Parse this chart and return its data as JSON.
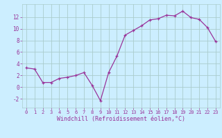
{
  "x": [
    0,
    1,
    2,
    3,
    4,
    5,
    6,
    7,
    8,
    9,
    10,
    11,
    12,
    13,
    14,
    15,
    16,
    17,
    18,
    19,
    20,
    21,
    22,
    23
  ],
  "y": [
    3.3,
    3.1,
    0.8,
    0.8,
    1.5,
    1.7,
    2.0,
    2.5,
    0.3,
    -2.3,
    2.5,
    5.3,
    8.9,
    9.7,
    10.5,
    11.5,
    11.7,
    12.3,
    12.2,
    13.0,
    11.9,
    11.6,
    10.2,
    7.8
  ],
  "line_color": "#993399",
  "marker": "+",
  "bg_color": "#cceeff",
  "grid_color": "#aacccc",
  "xlabel": "Windchill (Refroidissement éolien,°C)",
  "ylabel_ticks": [
    -2,
    0,
    2,
    4,
    6,
    8,
    10,
    12
  ],
  "xtick_labels": [
    "0",
    "1",
    "2",
    "3",
    "4",
    "5",
    "6",
    "7",
    "8",
    "9",
    "10",
    "11",
    "12",
    "13",
    "14",
    "15",
    "16",
    "17",
    "18",
    "19",
    "20",
    "21",
    "22",
    "23"
  ],
  "xlim": [
    -0.5,
    23.5
  ],
  "ylim": [
    -3.5,
    14.2
  ],
  "font_color": "#993399",
  "tick_fontsize": 5.0,
  "xlabel_fontsize": 6.0,
  "linewidth": 0.9,
  "markersize": 3.5,
  "markeredgewidth": 0.9
}
